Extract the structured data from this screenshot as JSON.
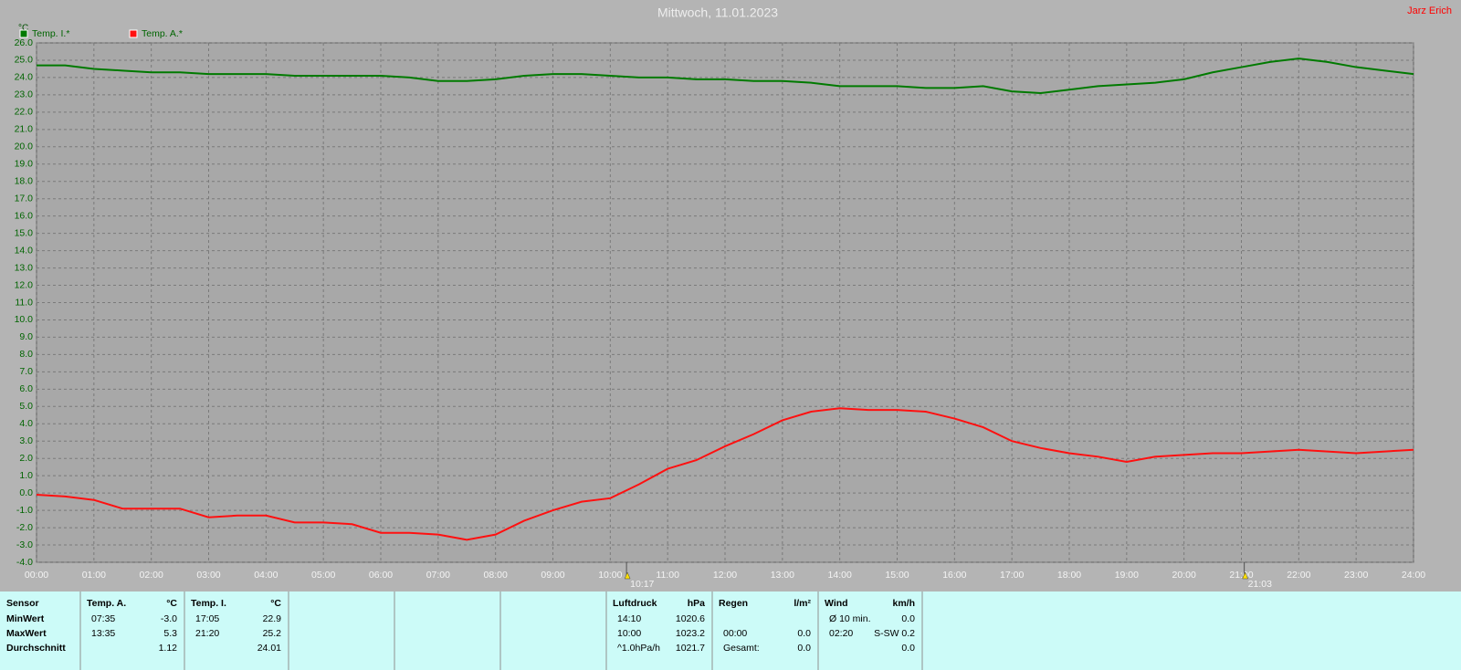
{
  "chart_data": {
    "type": "line",
    "title": "Mittwoch, 11.01.2023",
    "owner": "Jarz Erich",
    "y_label": "°C",
    "grid": true,
    "legend": "top-left",
    "x": [
      0,
      0.5,
      1,
      1.5,
      2,
      2.5,
      3,
      3.5,
      4,
      4.5,
      5,
      5.5,
      6,
      6.5,
      7,
      7.5,
      8,
      8.5,
      9,
      9.5,
      10,
      10.5,
      11,
      11.5,
      12,
      12.5,
      13,
      13.5,
      14,
      14.5,
      15,
      15.5,
      16,
      16.5,
      17,
      17.5,
      18,
      18.5,
      19,
      19.5,
      20,
      20.5,
      21,
      21.5,
      22,
      22.5,
      23,
      23.5,
      24
    ],
    "series": [
      {
        "name": "Temp. I.*",
        "color": "#007a00",
        "values": [
          24.7,
          24.7,
          24.5,
          24.4,
          24.3,
          24.3,
          24.2,
          24.2,
          24.2,
          24.1,
          24.1,
          24.1,
          24.1,
          24.0,
          23.8,
          23.8,
          23.9,
          24.1,
          24.2,
          24.2,
          24.1,
          24.0,
          24.0,
          23.9,
          23.9,
          23.8,
          23.8,
          23.7,
          23.5,
          23.5,
          23.5,
          23.4,
          23.4,
          23.5,
          23.2,
          23.1,
          23.3,
          23.5,
          23.6,
          23.7,
          23.9,
          24.3,
          24.6,
          24.9,
          25.1,
          24.9,
          24.6,
          24.4,
          24.2
        ]
      },
      {
        "name": "Temp. A.*",
        "color": "#ff1010",
        "values": [
          -0.1,
          -0.2,
          -0.4,
          -0.9,
          -0.9,
          -0.9,
          -1.4,
          -1.3,
          -1.3,
          -1.7,
          -1.7,
          -1.8,
          -2.3,
          -2.3,
          -2.4,
          -2.7,
          -2.4,
          -1.6,
          -1.0,
          -0.5,
          -0.3,
          0.5,
          1.4,
          1.9,
          2.7,
          3.4,
          4.2,
          4.7,
          4.9,
          4.8,
          4.8,
          4.7,
          4.3,
          3.8,
          3.0,
          2.6,
          2.3,
          2.1,
          1.8,
          2.1,
          2.2,
          2.3,
          2.3,
          2.4,
          2.5,
          2.4,
          2.3,
          2.4,
          2.5
        ]
      }
    ],
    "xlim": [
      0,
      24
    ],
    "xticks": [
      {
        "value": 0,
        "label": "00:00"
      },
      {
        "value": 1,
        "label": "01:00"
      },
      {
        "value": 2,
        "label": "02:00"
      },
      {
        "value": 3,
        "label": "03:00"
      },
      {
        "value": 4,
        "label": "04:00"
      },
      {
        "value": 5,
        "label": "05:00"
      },
      {
        "value": 6,
        "label": "06:00"
      },
      {
        "value": 7,
        "label": "07:00"
      },
      {
        "value": 8,
        "label": "08:00"
      },
      {
        "value": 9,
        "label": "09:00"
      },
      {
        "value": 10,
        "label": "10:00"
      },
      {
        "value": 11,
        "label": "11:00"
      },
      {
        "value": 12,
        "label": "12:00"
      },
      {
        "value": 13,
        "label": "13:00"
      },
      {
        "value": 14,
        "label": "14:00"
      },
      {
        "value": 15,
        "label": "15:00"
      },
      {
        "value": 16,
        "label": "16:00"
      },
      {
        "value": 17,
        "label": "17:00"
      },
      {
        "value": 18,
        "label": "18:00"
      },
      {
        "value": 19,
        "label": "19:00"
      },
      {
        "value": 20,
        "label": "20:00"
      },
      {
        "value": 21,
        "label": "21:00"
      },
      {
        "value": 22,
        "label": "22:00"
      },
      {
        "value": 23,
        "label": "23:00"
      },
      {
        "value": 24,
        "label": "24:00"
      }
    ],
    "ylim": [
      -4,
      26
    ],
    "yticks": [
      {
        "value": -4,
        "label": "-4.0"
      },
      {
        "value": -3,
        "label": "-3.0"
      },
      {
        "value": -2,
        "label": "-2.0"
      },
      {
        "value": -1,
        "label": "-1.0"
      },
      {
        "value": 0,
        "label": "0.0"
      },
      {
        "value": 1,
        "label": "1.0"
      },
      {
        "value": 2,
        "label": "2.0"
      },
      {
        "value": 3,
        "label": "3.0"
      },
      {
        "value": 4,
        "label": "4.0"
      },
      {
        "value": 5,
        "label": "5.0"
      },
      {
        "value": 6,
        "label": "6.0"
      },
      {
        "value": 7,
        "label": "7.0"
      },
      {
        "value": 8,
        "label": "8.0"
      },
      {
        "value": 9,
        "label": "9.0"
      },
      {
        "value": 10,
        "label": "10.0"
      },
      {
        "value": 11,
        "label": "11.0"
      },
      {
        "value": 12,
        "label": "12.0"
      },
      {
        "value": 13,
        "label": "13.0"
      },
      {
        "value": 14,
        "label": "14.0"
      },
      {
        "value": 15,
        "label": "15.0"
      },
      {
        "value": 16,
        "label": "16.0"
      },
      {
        "value": 17,
        "label": "17.0"
      },
      {
        "value": 18,
        "label": "18.0"
      },
      {
        "value": 19,
        "label": "19.0"
      },
      {
        "value": 20,
        "label": "20.0"
      },
      {
        "value": 21,
        "label": "21.0"
      },
      {
        "value": 22,
        "label": "22.0"
      },
      {
        "value": 23,
        "label": "23.0"
      },
      {
        "value": 24,
        "label": "24.0"
      },
      {
        "value": 25,
        "label": "25.0"
      },
      {
        "value": 26,
        "label": "26.0"
      }
    ],
    "markers": [
      {
        "value": 10.283,
        "label": "10:17"
      },
      {
        "value": 21.05,
        "label": "21:03"
      }
    ]
  },
  "table": {
    "panels": [
      {
        "rows": [
          {
            "left": "Sensor"
          },
          {
            "left": "MinWert"
          },
          {
            "left": "MaxWert"
          },
          {
            "left": "Durchschnitt"
          }
        ]
      },
      {
        "rows": [
          {
            "left": "Temp. A.",
            "right": "°C"
          },
          {
            "left": "07:35",
            "right": "-3.0"
          },
          {
            "left": "13:35",
            "right": "5.3"
          },
          {
            "right": "1.12"
          }
        ]
      },
      {
        "rows": [
          {
            "left": "Temp. I.",
            "right": "°C"
          },
          {
            "left": "17:05",
            "right": "22.9"
          },
          {
            "left": "21:20",
            "right": "25.2"
          },
          {
            "right": "24.01"
          }
        ]
      },
      {
        "rows": [
          {
            "left": "Luftdruck",
            "right": "hPa"
          },
          {
            "left": "14:10",
            "right": "1020.6"
          },
          {
            "left": "10:00",
            "right": "1023.2"
          },
          {
            "left": "^1.0hPa/h",
            "right": "1021.7"
          }
        ]
      },
      {
        "rows": [
          {
            "left": "Regen",
            "right": "l/m²"
          },
          null,
          {
            "left": "00:00",
            "right": "0.0"
          },
          {
            "left": "Gesamt:",
            "right": "0.0"
          }
        ]
      },
      {
        "rows": [
          {
            "left": "Wind",
            "right": "km/h"
          },
          {
            "left": "Ø 10 min.",
            "right": "0.0"
          },
          {
            "left": "02:20",
            "right": "S-SW 0.2"
          },
          {
            "right": "0.0"
          }
        ]
      }
    ]
  }
}
